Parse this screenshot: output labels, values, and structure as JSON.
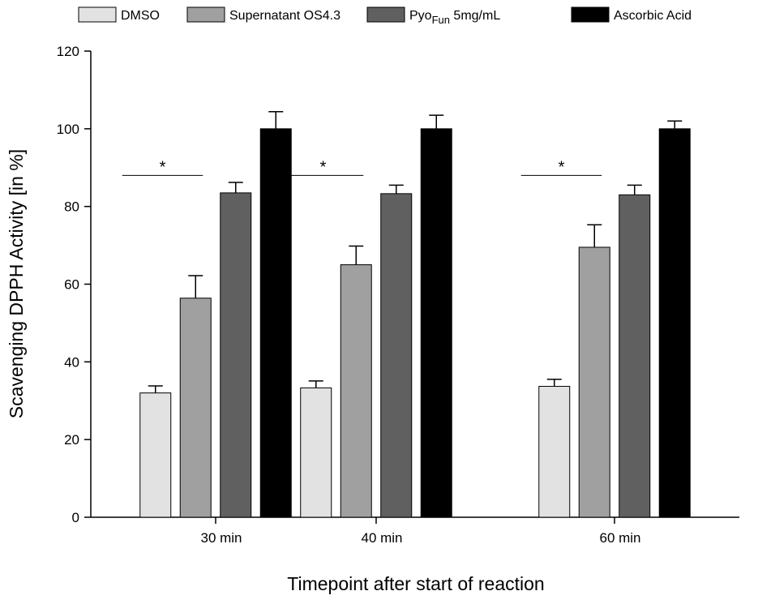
{
  "chart_data": {
    "type": "bar",
    "title": "",
    "xlabel": "Timepoint after start of reaction",
    "ylabel": "Scavenging DPPH Activity [in %]",
    "ylim": [
      0,
      120
    ],
    "yticks": [
      0,
      20,
      40,
      60,
      80,
      100,
      120
    ],
    "categories": [
      "30 min",
      "40 min",
      "60 min"
    ],
    "series": [
      {
        "name": "DMSO",
        "values": [
          32,
          33.3,
          33.7
        ],
        "errors": [
          1.8,
          1.8,
          1.8
        ],
        "color": "#e2e2e2"
      },
      {
        "name": "Supernatant OS4.3",
        "values": [
          56.4,
          65,
          69.5
        ],
        "errors": [
          5.8,
          4.8,
          5.8
        ],
        "color": "#a0a0a0"
      },
      {
        "name_main": "Pyo",
        "name_sub": "Fun",
        "name_suffix": " 5mg/mL",
        "values": [
          83.5,
          83.3,
          83
        ],
        "errors": [
          2.7,
          2.2,
          2.5
        ],
        "color": "#606060"
      },
      {
        "name": "Ascorbic Acid",
        "values": [
          100,
          100,
          100
        ],
        "errors": [
          4.4,
          3.5,
          2
        ],
        "color": "#000000"
      }
    ],
    "significance": [
      {
        "label": "*",
        "y": 88
      },
      {
        "label": "*",
        "y": 88
      },
      {
        "label": "*",
        "y": 88
      }
    ],
    "legend_position": "top"
  }
}
